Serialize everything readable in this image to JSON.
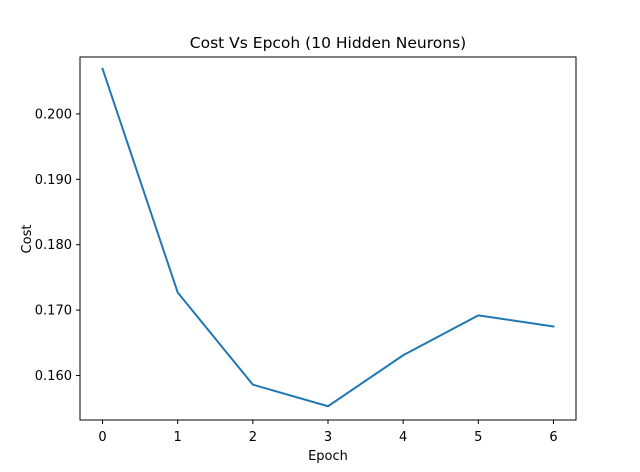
{
  "chart_data": {
    "type": "line",
    "title": "Cost Vs Epcoh (10 Hidden Neurons)",
    "xlabel": "Epoch",
    "ylabel": "Cost",
    "x": [
      0,
      1,
      2,
      3,
      4,
      5,
      6
    ],
    "series": [
      {
        "values": [
          0.2069,
          0.1727,
          0.1586,
          0.1553,
          0.1631,
          0.1692,
          0.1675
        ],
        "color": "#1f77b4"
      }
    ],
    "xlim": [
      -0.3,
      6.3
    ],
    "ylim": [
      0.1532,
      0.2087
    ],
    "xticks": [
      0,
      1,
      2,
      3,
      4,
      5,
      6
    ],
    "yticks": [
      0.16,
      0.17,
      0.18,
      0.19,
      0.2
    ],
    "ytick_labels": [
      "0.160",
      "0.170",
      "0.180",
      "0.190",
      "0.200"
    ],
    "grid": false,
    "legend": "none"
  }
}
